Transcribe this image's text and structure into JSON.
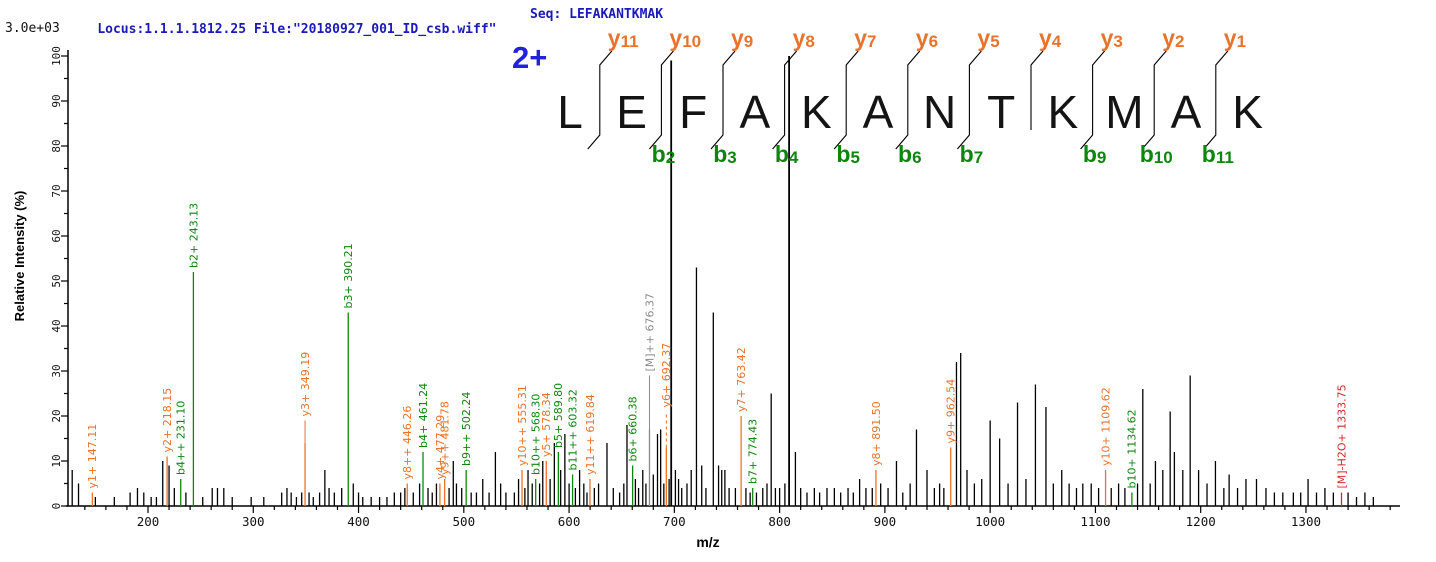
{
  "header": {
    "locus_file": "Locus:1.1.1.1812.25 File:\"20180927_001_ID_csb.wiff\"",
    "seq": "Seq: LEFAKANTKMAK",
    "intensity_scale": "3.0e+03"
  },
  "colors": {
    "y_ion": "#e8732a",
    "b_ion": "#0e860e",
    "precursor": "#8a8a8a",
    "neutral_loss": "#cc2b2b",
    "peak": "#000000",
    "header_blue": "#1a1ab8",
    "charge_blue": "#2222dd",
    "letter": "#141414"
  },
  "sequence_overlay": {
    "charge_label": "2+",
    "residues": [
      "L",
      "E",
      "F",
      "A",
      "K",
      "A",
      "N",
      "T",
      "K",
      "M",
      "A",
      "K"
    ],
    "sites": [
      {
        "y": "y11",
        "b": null,
        "bottom_tick": true
      },
      {
        "y": "y10",
        "b": "b2",
        "bottom_tick": true
      },
      {
        "y": "y9",
        "b": "b3",
        "bottom_tick": true
      },
      {
        "y": "y8",
        "b": "b4",
        "bottom_tick": true
      },
      {
        "y": "y7",
        "b": "b5",
        "bottom_tick": true
      },
      {
        "y": "y6",
        "b": "b6",
        "bottom_tick": true
      },
      {
        "y": "y5",
        "b": "b7",
        "bottom_tick": true
      },
      {
        "y": "y4",
        "b": null,
        "bottom_tick": false
      },
      {
        "y": "y3",
        "b": "b9",
        "bottom_tick": true
      },
      {
        "y": "y2",
        "b": "b10",
        "bottom_tick": true
      },
      {
        "y": "y1",
        "b": "b11",
        "bottom_tick": true
      }
    ]
  },
  "chart_data": {
    "type": "bar",
    "subtype": "mass-spectrum-stick-plot",
    "title": "",
    "xlabel": "m/z",
    "ylabel": "Relative  Intensity (%)",
    "xlim": [
      124,
      1390
    ],
    "ylim": [
      0,
      100
    ],
    "x_ticks": [
      200,
      300,
      400,
      500,
      600,
      700,
      800,
      900,
      1000,
      1100,
      1200,
      1300
    ],
    "y_ticks": [
      0,
      10,
      20,
      30,
      40,
      50,
      60,
      70,
      80,
      90,
      100
    ],
    "grid": false,
    "annotated_peaks": [
      {
        "label": "y1+ 147.11",
        "mz": 147.11,
        "intensity": 3,
        "type": "y"
      },
      {
        "label": "y2+ 218.15",
        "mz": 218.15,
        "intensity": 11,
        "type": "y"
      },
      {
        "label": "b4++ 231.10",
        "mz": 231.1,
        "intensity": 6,
        "type": "b"
      },
      {
        "label": "b2+ 243.13",
        "mz": 243.13,
        "intensity": 52,
        "type": "b"
      },
      {
        "label": "y3+ 349.19",
        "mz": 349.19,
        "intensity": 14,
        "type": "y",
        "leader": 5
      },
      {
        "label": "b3+ 390.21",
        "mz": 390.21,
        "intensity": 43,
        "type": "b"
      },
      {
        "label": "y8++ 446.26",
        "mz": 446.26,
        "intensity": 5,
        "type": "y"
      },
      {
        "label": "b4+ 461.24",
        "mz": 461.24,
        "intensity": 12,
        "type": "b"
      },
      {
        "label": "y4+ 477.29",
        "mz": 477.29,
        "intensity": 5,
        "type": "y"
      },
      {
        "label": "y9++ 481.78",
        "mz": 481.78,
        "intensity": 6,
        "type": "y"
      },
      {
        "label": "b9++ 502.24",
        "mz": 502.24,
        "intensity": 8,
        "type": "b"
      },
      {
        "label": "y10++ 555.31",
        "mz": 555.31,
        "intensity": 8,
        "type": "y"
      },
      {
        "label": "b10++ 568.30",
        "mz": 568.3,
        "intensity": 6,
        "type": "b"
      },
      {
        "label": "y5+ 578.34",
        "mz": 578.34,
        "intensity": 10,
        "type": "y"
      },
      {
        "label": "b5+ 589.80",
        "mz": 589.8,
        "intensity": 12,
        "type": "b"
      },
      {
        "label": "b11++ 603.32",
        "mz": 603.32,
        "intensity": 7,
        "type": "b"
      },
      {
        "label": "y11++ 619.84",
        "mz": 619.84,
        "intensity": 6,
        "type": "y"
      },
      {
        "label": "b6+ 660.38",
        "mz": 660.38,
        "intensity": 9,
        "type": "b"
      },
      {
        "label": "[M]++ 676.37",
        "mz": 676.37,
        "intensity": 17,
        "type": "precursor",
        "leader": 12
      },
      {
        "label": "y6+ 692.37",
        "mz": 692.37,
        "intensity": 13,
        "type": "y",
        "leader": 8,
        "dashed": true
      },
      {
        "label": "y7+ 763.42",
        "mz": 763.42,
        "intensity": 20,
        "type": "y"
      },
      {
        "label": "b7+ 774.43",
        "mz": 774.43,
        "intensity": 4,
        "type": "b"
      },
      {
        "label": "y8+ 891.50",
        "mz": 891.5,
        "intensity": 8,
        "type": "y"
      },
      {
        "label": "y9+ 962.54",
        "mz": 962.54,
        "intensity": 13,
        "type": "y"
      },
      {
        "label": "y10+ 1109.62",
        "mz": 1109.62,
        "intensity": 8,
        "type": "y"
      },
      {
        "label": "b10+ 1134.62",
        "mz": 1134.62,
        "intensity": 3,
        "type": "b"
      },
      {
        "label": "[M]-H2O+ 1333.75",
        "mz": 1333.75,
        "intensity": 3,
        "type": "neutral_loss"
      }
    ],
    "unlabeled_peaks": [
      [
        128,
        8
      ],
      [
        134,
        5
      ],
      [
        150,
        2
      ],
      [
        168,
        2
      ],
      [
        183,
        3
      ],
      [
        190,
        4
      ],
      [
        196,
        3
      ],
      [
        203,
        2
      ],
      [
        208,
        2
      ],
      [
        214,
        10
      ],
      [
        220,
        9
      ],
      [
        225,
        4
      ],
      [
        236,
        3
      ],
      [
        252,
        2
      ],
      [
        261,
        4
      ],
      [
        266,
        4
      ],
      [
        272,
        4
      ],
      [
        280,
        2
      ],
      [
        298,
        2
      ],
      [
        310,
        2
      ],
      [
        327,
        3
      ],
      [
        332,
        4
      ],
      [
        336,
        3
      ],
      [
        341,
        2
      ],
      [
        346,
        3
      ],
      [
        353,
        3
      ],
      [
        357,
        2
      ],
      [
        363,
        3
      ],
      [
        368,
        8
      ],
      [
        372,
        4
      ],
      [
        377,
        3
      ],
      [
        384,
        4
      ],
      [
        395,
        5
      ],
      [
        400,
        3
      ],
      [
        404,
        2
      ],
      [
        412,
        2
      ],
      [
        420,
        2
      ],
      [
        427,
        2
      ],
      [
        434,
        3
      ],
      [
        440,
        3
      ],
      [
        444,
        4
      ],
      [
        452,
        3
      ],
      [
        458,
        5
      ],
      [
        466,
        4
      ],
      [
        470,
        3
      ],
      [
        474,
        5
      ],
      [
        486,
        4
      ],
      [
        490,
        10
      ],
      [
        493,
        5
      ],
      [
        498,
        4
      ],
      [
        507,
        3
      ],
      [
        512,
        3
      ],
      [
        518,
        6
      ],
      [
        524,
        3
      ],
      [
        530,
        12
      ],
      [
        535,
        5
      ],
      [
        540,
        3
      ],
      [
        548,
        3
      ],
      [
        552,
        6
      ],
      [
        558,
        4
      ],
      [
        561,
        8
      ],
      [
        565,
        5
      ],
      [
        572,
        5
      ],
      [
        575,
        10
      ],
      [
        582,
        6
      ],
      [
        586,
        14
      ],
      [
        592,
        8
      ],
      [
        596,
        16
      ],
      [
        600,
        5
      ],
      [
        606,
        4
      ],
      [
        610,
        8
      ],
      [
        614,
        5
      ],
      [
        617,
        3
      ],
      [
        624,
        4
      ],
      [
        628,
        5
      ],
      [
        636,
        14
      ],
      [
        642,
        4
      ],
      [
        648,
        3
      ],
      [
        652,
        5
      ],
      [
        655,
        18
      ],
      [
        663,
        6
      ],
      [
        666,
        4
      ],
      [
        670,
        8
      ],
      [
        673,
        5
      ],
      [
        680,
        7
      ],
      [
        684,
        16
      ],
      [
        687,
        17
      ],
      [
        690,
        5
      ],
      [
        695,
        6
      ],
      [
        697,
        99
      ],
      [
        701,
        8
      ],
      [
        704,
        6
      ],
      [
        707,
        4
      ],
      [
        712,
        5
      ],
      [
        716,
        8
      ],
      [
        721,
        53
      ],
      [
        726,
        9
      ],
      [
        730,
        4
      ],
      [
        737,
        43
      ],
      [
        742,
        9
      ],
      [
        745,
        8
      ],
      [
        748,
        8
      ],
      [
        752,
        4
      ],
      [
        758,
        4
      ],
      [
        768,
        4
      ],
      [
        772,
        3
      ],
      [
        778,
        3
      ],
      [
        784,
        4
      ],
      [
        788,
        5
      ],
      [
        792,
        25
      ],
      [
        796,
        4
      ],
      [
        800,
        4
      ],
      [
        805,
        5
      ],
      [
        809,
        100
      ],
      [
        815,
        12
      ],
      [
        820,
        4
      ],
      [
        826,
        3
      ],
      [
        833,
        4
      ],
      [
        838,
        3
      ],
      [
        845,
        4
      ],
      [
        852,
        4
      ],
      [
        858,
        3
      ],
      [
        865,
        4
      ],
      [
        870,
        3
      ],
      [
        876,
        6
      ],
      [
        882,
        4
      ],
      [
        888,
        4
      ],
      [
        896,
        5
      ],
      [
        903,
        4
      ],
      [
        911,
        10
      ],
      [
        917,
        3
      ],
      [
        924,
        5
      ],
      [
        930,
        17
      ],
      [
        940,
        8
      ],
      [
        947,
        4
      ],
      [
        952,
        5
      ],
      [
        956,
        4
      ],
      [
        968,
        32
      ],
      [
        972,
        34
      ],
      [
        978,
        8
      ],
      [
        985,
        5
      ],
      [
        992,
        6
      ],
      [
        1000,
        19
      ],
      [
        1009,
        15
      ],
      [
        1017,
        5
      ],
      [
        1026,
        23
      ],
      [
        1034,
        6
      ],
      [
        1043,
        27
      ],
      [
        1053,
        22
      ],
      [
        1060,
        5
      ],
      [
        1068,
        8
      ],
      [
        1075,
        5
      ],
      [
        1082,
        4
      ],
      [
        1088,
        5
      ],
      [
        1096,
        5
      ],
      [
        1103,
        4
      ],
      [
        1115,
        4
      ],
      [
        1122,
        5
      ],
      [
        1128,
        4
      ],
      [
        1140,
        5
      ],
      [
        1145,
        26
      ],
      [
        1152,
        5
      ],
      [
        1157,
        10
      ],
      [
        1164,
        8
      ],
      [
        1171,
        21
      ],
      [
        1175,
        12
      ],
      [
        1183,
        8
      ],
      [
        1190,
        29
      ],
      [
        1198,
        8
      ],
      [
        1206,
        5
      ],
      [
        1214,
        10
      ],
      [
        1222,
        4
      ],
      [
        1227,
        7
      ],
      [
        1235,
        4
      ],
      [
        1243,
        6
      ],
      [
        1253,
        6
      ],
      [
        1262,
        4
      ],
      [
        1270,
        3
      ],
      [
        1278,
        3
      ],
      [
        1288,
        3
      ],
      [
        1295,
        3
      ],
      [
        1302,
        6
      ],
      [
        1310,
        3
      ],
      [
        1318,
        4
      ],
      [
        1326,
        3
      ],
      [
        1340,
        3
      ],
      [
        1348,
        2
      ],
      [
        1356,
        3
      ],
      [
        1364,
        2
      ]
    ]
  }
}
